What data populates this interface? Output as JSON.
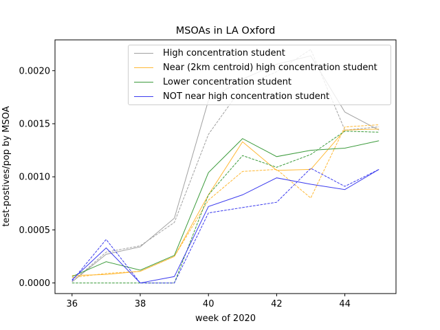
{
  "chart_data": {
    "type": "line",
    "title": "MSOAs in LA Oxford",
    "xlabel": "week of 2020",
    "ylabel": "test-postives/pop by MSOA",
    "xlim": [
      35.5,
      45.5
    ],
    "ylim": [
      -0.0001,
      0.00229
    ],
    "xticks": [
      36,
      38,
      40,
      42,
      44
    ],
    "yticks": [
      0.0,
      0.0005,
      0.001,
      0.0015,
      0.002
    ],
    "ytick_labels": [
      "0.0000",
      "0.0005",
      "0.0010",
      "0.0015",
      "0.0020"
    ],
    "x": [
      36,
      37,
      38,
      39,
      40,
      41,
      42,
      43,
      44,
      45
    ],
    "legend_position": "top-right",
    "grid": false,
    "series": [
      {
        "name": "High concentration student",
        "color": "#a0a0a0",
        "style": "solid",
        "values": [
          1e-05,
          0.00027,
          0.00034,
          0.00061,
          0.00172,
          0.00192,
          0.00206,
          0.00214,
          0.00161,
          0.00144
        ]
      },
      {
        "name": "",
        "color": "#a0a0a0",
        "style": "dashed",
        "values": [
          1e-05,
          0.00029,
          0.00035,
          0.00057,
          0.0014,
          0.00185,
          0.00199,
          0.0022,
          0.00144,
          0.00147
        ]
      },
      {
        "name": "Near (2km centroid) high concentration student",
        "color": "#ffb833",
        "style": "solid",
        "values": [
          7e-05,
          8e-05,
          0.00011,
          0.00025,
          0.00083,
          0.00133,
          0.00106,
          0.00107,
          0.00144,
          0.00145
        ]
      },
      {
        "name": "",
        "color": "#ffb833",
        "style": "dashed",
        "values": [
          5e-05,
          9e-05,
          0.00011,
          0.00025,
          0.00078,
          0.00105,
          0.00107,
          0.0008,
          0.00147,
          0.00149
        ]
      },
      {
        "name": "Lower concentration student",
        "color": "#3a9a3a",
        "style": "solid",
        "values": [
          6e-05,
          0.0002,
          0.00012,
          0.00026,
          0.00104,
          0.00136,
          0.00119,
          0.00125,
          0.00127,
          0.00134
        ]
      },
      {
        "name": "",
        "color": "#3a9a3a",
        "style": "dashed",
        "values": [
          0.0,
          0.0,
          0.0,
          0.0,
          0.00083,
          0.0012,
          0.00109,
          0.00121,
          0.00143,
          0.00142
        ]
      },
      {
        "name": "NOT near high concentration student",
        "color": "#3a3aee",
        "style": "solid",
        "values": [
          3e-05,
          0.00033,
          0.0,
          6e-05,
          0.00072,
          0.00083,
          0.00099,
          0.00093,
          0.00088,
          0.00107
        ]
      },
      {
        "name": "",
        "color": "#3a3aee",
        "style": "dashed",
        "values": [
          2e-05,
          0.00041,
          0.0,
          0.0,
          0.00066,
          0.00071,
          0.00076,
          0.00108,
          0.00091,
          0.00107
        ]
      }
    ]
  }
}
